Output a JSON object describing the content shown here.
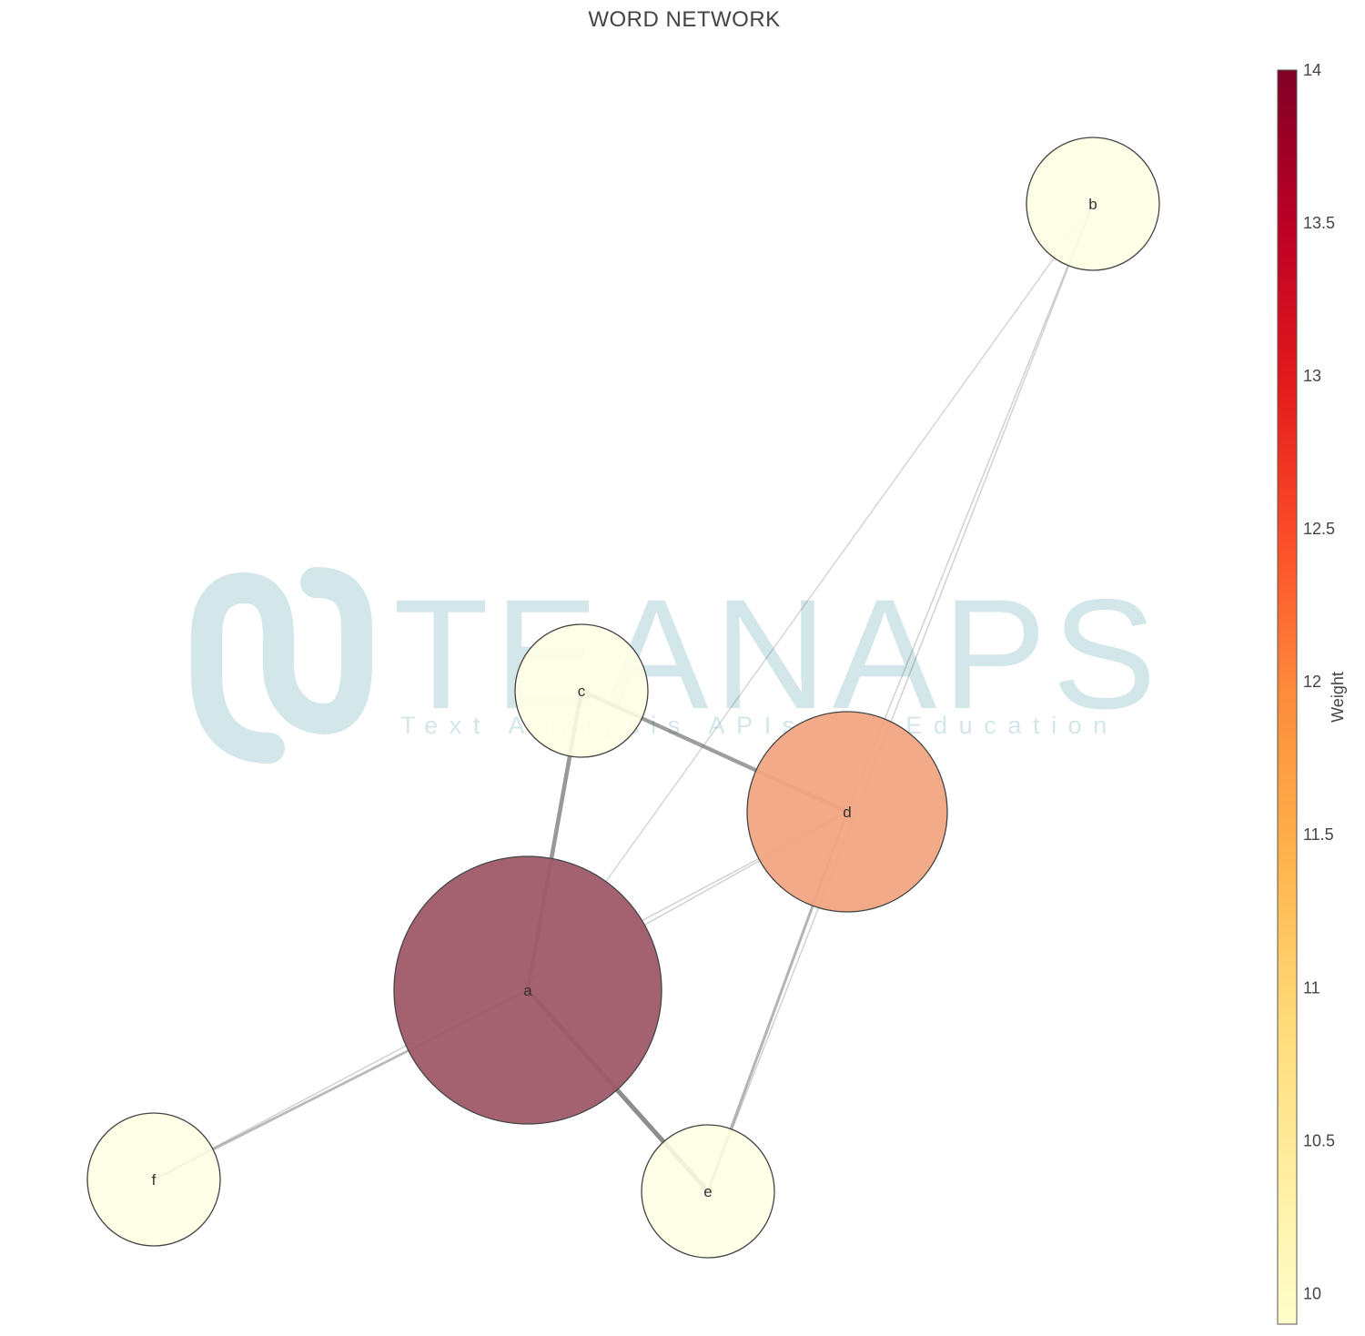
{
  "title": "WORD NETWORK",
  "watermark": {
    "brand": "TEANAPS",
    "tagline": "Text Analysis APIs for Education",
    "color": "#d3e6ea"
  },
  "chart_data": {
    "type": "network",
    "nodes": [
      {
        "id": "a",
        "label": "a",
        "weight": 14
      },
      {
        "id": "b",
        "label": "b",
        "weight": 10
      },
      {
        "id": "c",
        "label": "c",
        "weight": 10
      },
      {
        "id": "d",
        "label": "d",
        "weight": 12
      },
      {
        "id": "e",
        "label": "e",
        "weight": 10
      },
      {
        "id": "f",
        "label": "f",
        "weight": 10
      }
    ],
    "edges": [
      {
        "source": "a",
        "target": "c",
        "strength": 0.75
      },
      {
        "source": "a",
        "target": "e",
        "strength": 0.85
      },
      {
        "source": "a",
        "target": "f",
        "strength": 0.4
      },
      {
        "source": "a",
        "target": "d",
        "strength": 0.15
      },
      {
        "source": "a",
        "target": "b",
        "strength": 0.12
      },
      {
        "source": "c",
        "target": "d",
        "strength": 0.7
      },
      {
        "source": "d",
        "target": "e",
        "strength": 0.45
      },
      {
        "source": "d",
        "target": "f",
        "strength": 0.15
      },
      {
        "source": "b",
        "target": "d",
        "strength": 0.15
      },
      {
        "source": "b",
        "target": "e",
        "strength": 0.15
      }
    ],
    "colorbar": {
      "title": "Weight",
      "range": [
        9.9,
        14
      ],
      "ticks": [
        10,
        10.5,
        11,
        11.5,
        12,
        12.5,
        13,
        13.5,
        14
      ],
      "tick_labels": [
        "10",
        "10.5",
        "11",
        "11.5",
        "12",
        "12.5",
        "13",
        "13.5",
        "14"
      ],
      "colorscale": [
        "#ffffcc",
        "#ffeda0",
        "#fed976",
        "#feb24c",
        "#fd8d3c",
        "#fc4e2a",
        "#e31a1c",
        "#bd0026",
        "#800026"
      ]
    },
    "node_fill_colors": {
      "a": "#9f5a69",
      "b": "#ffffe5",
      "c": "#ffffe5",
      "d": "#f2a582",
      "e": "#ffffe5",
      "f": "#ffffe5"
    }
  }
}
